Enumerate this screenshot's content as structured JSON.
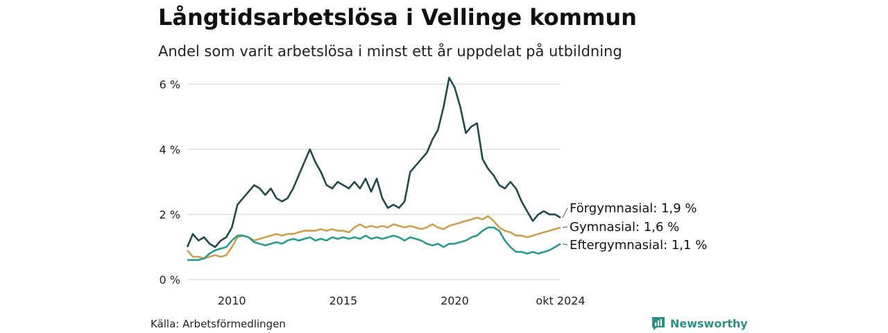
{
  "title": "Långtidsarbetslösa i Vellinge kommun",
  "subtitle": "Andel som varit arbetslösa i minst ett år uppdelat på utbildning",
  "source": "Källa: Arbetsförmedlingen",
  "brand": "Newsworthy",
  "colors": {
    "forgymnasial": "#1f4a45",
    "gymnasial": "#cc9f4f",
    "eftergymnasial": "#2a9a8e",
    "grid": "#dddddd",
    "brand": "#2e8f86"
  },
  "chart_data": {
    "type": "line",
    "title": "Långtidsarbetslösa i Vellinge kommun",
    "subtitle": "Andel som varit arbetslösa i minst ett år uppdelat på utbildning",
    "xlabel": "",
    "ylabel": "",
    "x_range": [
      2008.0,
      2024.75
    ],
    "ylim": [
      0,
      6.2
    ],
    "y_ticks": [
      {
        "value": 0,
        "label": "0 %"
      },
      {
        "value": 2,
        "label": "2 %"
      },
      {
        "value": 4,
        "label": "4 %"
      },
      {
        "value": 6,
        "label": "6 %"
      }
    ],
    "x_ticks": [
      {
        "value": 2010,
        "label": "2010"
      },
      {
        "value": 2015,
        "label": "2015"
      },
      {
        "value": 2020,
        "label": "2020"
      },
      {
        "value": 2024.75,
        "label": "okt 2024"
      }
    ],
    "grid": true,
    "legend": "end-of-line labels",
    "series": [
      {
        "name": "Förgymnasial",
        "label": "Förgymnasial: 1,9 %",
        "color": "#1f4a45",
        "points": [
          [
            2008.0,
            1.0
          ],
          [
            2008.25,
            1.4
          ],
          [
            2008.5,
            1.2
          ],
          [
            2008.75,
            1.3
          ],
          [
            2009.0,
            1.1
          ],
          [
            2009.25,
            1.0
          ],
          [
            2009.5,
            1.2
          ],
          [
            2009.75,
            1.3
          ],
          [
            2010.0,
            1.6
          ],
          [
            2010.25,
            2.3
          ],
          [
            2010.5,
            2.5
          ],
          [
            2010.75,
            2.7
          ],
          [
            2011.0,
            2.9
          ],
          [
            2011.25,
            2.8
          ],
          [
            2011.5,
            2.6
          ],
          [
            2011.75,
            2.8
          ],
          [
            2012.0,
            2.5
          ],
          [
            2012.25,
            2.4
          ],
          [
            2012.5,
            2.5
          ],
          [
            2012.75,
            2.8
          ],
          [
            2013.0,
            3.2
          ],
          [
            2013.25,
            3.6
          ],
          [
            2013.5,
            4.0
          ],
          [
            2013.75,
            3.6
          ],
          [
            2014.0,
            3.3
          ],
          [
            2014.25,
            2.9
          ],
          [
            2014.5,
            2.8
          ],
          [
            2014.75,
            3.0
          ],
          [
            2015.0,
            2.9
          ],
          [
            2015.25,
            2.8
          ],
          [
            2015.5,
            3.0
          ],
          [
            2015.75,
            2.8
          ],
          [
            2016.0,
            3.1
          ],
          [
            2016.25,
            2.7
          ],
          [
            2016.5,
            3.1
          ],
          [
            2016.75,
            2.5
          ],
          [
            2017.0,
            2.2
          ],
          [
            2017.25,
            2.3
          ],
          [
            2017.5,
            2.2
          ],
          [
            2017.75,
            2.4
          ],
          [
            2018.0,
            3.3
          ],
          [
            2018.25,
            3.5
          ],
          [
            2018.5,
            3.7
          ],
          [
            2018.75,
            3.9
          ],
          [
            2019.0,
            4.3
          ],
          [
            2019.25,
            4.6
          ],
          [
            2019.5,
            5.3
          ],
          [
            2019.75,
            6.2
          ],
          [
            2020.0,
            5.9
          ],
          [
            2020.25,
            5.3
          ],
          [
            2020.5,
            4.5
          ],
          [
            2020.75,
            4.7
          ],
          [
            2021.0,
            4.8
          ],
          [
            2021.25,
            3.7
          ],
          [
            2021.5,
            3.4
          ],
          [
            2021.75,
            3.2
          ],
          [
            2022.0,
            2.9
          ],
          [
            2022.25,
            2.8
          ],
          [
            2022.5,
            3.0
          ],
          [
            2022.75,
            2.8
          ],
          [
            2023.0,
            2.4
          ],
          [
            2023.25,
            2.1
          ],
          [
            2023.5,
            1.8
          ],
          [
            2023.75,
            2.0
          ],
          [
            2024.0,
            2.1
          ],
          [
            2024.25,
            2.0
          ],
          [
            2024.5,
            2.0
          ],
          [
            2024.75,
            1.9
          ]
        ]
      },
      {
        "name": "Gymnasial",
        "label": "Gymnasial: 1,6 %",
        "color": "#cc9f4f",
        "points": [
          [
            2008.0,
            0.9
          ],
          [
            2008.25,
            0.7
          ],
          [
            2008.5,
            0.7
          ],
          [
            2008.75,
            0.65
          ],
          [
            2009.0,
            0.7
          ],
          [
            2009.25,
            0.75
          ],
          [
            2009.5,
            0.7
          ],
          [
            2009.75,
            0.75
          ],
          [
            2010.0,
            1.0
          ],
          [
            2010.25,
            1.3
          ],
          [
            2010.5,
            1.35
          ],
          [
            2010.75,
            1.3
          ],
          [
            2011.0,
            1.2
          ],
          [
            2011.25,
            1.25
          ],
          [
            2011.5,
            1.3
          ],
          [
            2011.75,
            1.35
          ],
          [
            2012.0,
            1.4
          ],
          [
            2012.25,
            1.35
          ],
          [
            2012.5,
            1.4
          ],
          [
            2012.75,
            1.4
          ],
          [
            2013.0,
            1.45
          ],
          [
            2013.25,
            1.5
          ],
          [
            2013.5,
            1.5
          ],
          [
            2013.75,
            1.5
          ],
          [
            2014.0,
            1.55
          ],
          [
            2014.25,
            1.5
          ],
          [
            2014.5,
            1.55
          ],
          [
            2014.75,
            1.5
          ],
          [
            2015.0,
            1.5
          ],
          [
            2015.25,
            1.45
          ],
          [
            2015.5,
            1.6
          ],
          [
            2015.75,
            1.7
          ],
          [
            2016.0,
            1.6
          ],
          [
            2016.25,
            1.65
          ],
          [
            2016.5,
            1.6
          ],
          [
            2016.75,
            1.65
          ],
          [
            2017.0,
            1.6
          ],
          [
            2017.25,
            1.7
          ],
          [
            2017.5,
            1.65
          ],
          [
            2017.75,
            1.6
          ],
          [
            2018.0,
            1.65
          ],
          [
            2018.25,
            1.6
          ],
          [
            2018.5,
            1.55
          ],
          [
            2018.75,
            1.6
          ],
          [
            2019.0,
            1.7
          ],
          [
            2019.25,
            1.6
          ],
          [
            2019.5,
            1.55
          ],
          [
            2019.75,
            1.65
          ],
          [
            2020.0,
            1.7
          ],
          [
            2020.25,
            1.75
          ],
          [
            2020.5,
            1.8
          ],
          [
            2020.75,
            1.85
          ],
          [
            2021.0,
            1.9
          ],
          [
            2021.25,
            1.85
          ],
          [
            2021.5,
            1.95
          ],
          [
            2021.75,
            1.8
          ],
          [
            2022.0,
            1.6
          ],
          [
            2022.25,
            1.5
          ],
          [
            2022.5,
            1.45
          ],
          [
            2022.75,
            1.35
          ],
          [
            2023.0,
            1.35
          ],
          [
            2023.25,
            1.3
          ],
          [
            2023.5,
            1.35
          ],
          [
            2023.75,
            1.4
          ],
          [
            2024.0,
            1.45
          ],
          [
            2024.25,
            1.5
          ],
          [
            2024.5,
            1.55
          ],
          [
            2024.75,
            1.6
          ]
        ]
      },
      {
        "name": "Eftergymnasial",
        "label": "Eftergymnasial: 1,1 %",
        "color": "#2a9a8e",
        "points": [
          [
            2008.0,
            0.6
          ],
          [
            2008.25,
            0.6
          ],
          [
            2008.5,
            0.6
          ],
          [
            2008.75,
            0.65
          ],
          [
            2009.0,
            0.8
          ],
          [
            2009.25,
            0.9
          ],
          [
            2009.5,
            0.95
          ],
          [
            2009.75,
            1.0
          ],
          [
            2010.0,
            1.2
          ],
          [
            2010.25,
            1.35
          ],
          [
            2010.5,
            1.35
          ],
          [
            2010.75,
            1.3
          ],
          [
            2011.0,
            1.15
          ],
          [
            2011.25,
            1.1
          ],
          [
            2011.5,
            1.05
          ],
          [
            2011.75,
            1.1
          ],
          [
            2012.0,
            1.15
          ],
          [
            2012.25,
            1.1
          ],
          [
            2012.5,
            1.2
          ],
          [
            2012.75,
            1.25
          ],
          [
            2013.0,
            1.2
          ],
          [
            2013.25,
            1.25
          ],
          [
            2013.5,
            1.3
          ],
          [
            2013.75,
            1.2
          ],
          [
            2014.0,
            1.25
          ],
          [
            2014.25,
            1.2
          ],
          [
            2014.5,
            1.3
          ],
          [
            2014.75,
            1.25
          ],
          [
            2015.0,
            1.3
          ],
          [
            2015.25,
            1.25
          ],
          [
            2015.5,
            1.3
          ],
          [
            2015.75,
            1.25
          ],
          [
            2016.0,
            1.35
          ],
          [
            2016.25,
            1.25
          ],
          [
            2016.5,
            1.3
          ],
          [
            2016.75,
            1.25
          ],
          [
            2017.0,
            1.3
          ],
          [
            2017.25,
            1.35
          ],
          [
            2017.5,
            1.3
          ],
          [
            2017.75,
            1.2
          ],
          [
            2018.0,
            1.3
          ],
          [
            2018.25,
            1.25
          ],
          [
            2018.5,
            1.2
          ],
          [
            2018.75,
            1.1
          ],
          [
            2019.0,
            1.05
          ],
          [
            2019.25,
            1.1
          ],
          [
            2019.5,
            1.0
          ],
          [
            2019.75,
            1.1
          ],
          [
            2020.0,
            1.1
          ],
          [
            2020.25,
            1.15
          ],
          [
            2020.5,
            1.2
          ],
          [
            2020.75,
            1.3
          ],
          [
            2021.0,
            1.35
          ],
          [
            2021.25,
            1.5
          ],
          [
            2021.5,
            1.6
          ],
          [
            2021.75,
            1.6
          ],
          [
            2022.0,
            1.5
          ],
          [
            2022.25,
            1.2
          ],
          [
            2022.5,
            1.0
          ],
          [
            2022.75,
            0.85
          ],
          [
            2023.0,
            0.85
          ],
          [
            2023.25,
            0.8
          ],
          [
            2023.5,
            0.85
          ],
          [
            2023.75,
            0.8
          ],
          [
            2024.0,
            0.85
          ],
          [
            2024.25,
            0.9
          ],
          [
            2024.5,
            1.0
          ],
          [
            2024.75,
            1.1
          ]
        ]
      }
    ]
  }
}
